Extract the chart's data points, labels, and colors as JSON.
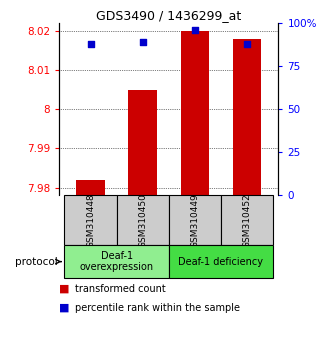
{
  "title": "GDS3490 / 1436299_at",
  "samples": [
    "GSM310448",
    "GSM310450",
    "GSM310449",
    "GSM310452"
  ],
  "red_values": [
    7.982,
    8.005,
    8.02,
    8.018
  ],
  "blue_values": [
    0.88,
    0.89,
    0.96,
    0.88
  ],
  "ylim_left": [
    7.978,
    8.022
  ],
  "ylim_right": [
    0,
    1.0
  ],
  "yticks_left": [
    7.98,
    7.99,
    8.0,
    8.01,
    8.02
  ],
  "ytick_labels_left": [
    "7.98",
    "7.99",
    "8",
    "8.01",
    "8.02"
  ],
  "yticks_right": [
    0,
    0.25,
    0.5,
    0.75,
    1.0
  ],
  "ytick_labels_right": [
    "0",
    "25",
    "50",
    "75",
    "100%"
  ],
  "group1_label": "Deaf-1\noverexpression",
  "group2_label": "Deaf-1 deficiency",
  "group1_color": "#90EE90",
  "group2_color": "#44DD44",
  "protocol_label": "protocol",
  "legend_red": "transformed count",
  "legend_blue": "percentile rank within the sample",
  "bar_color": "#CC0000",
  "dot_color": "#0000CC",
  "bar_width": 0.55,
  "dot_size": 25,
  "ybase": 7.978,
  "sample_box_color": "#cccccc"
}
